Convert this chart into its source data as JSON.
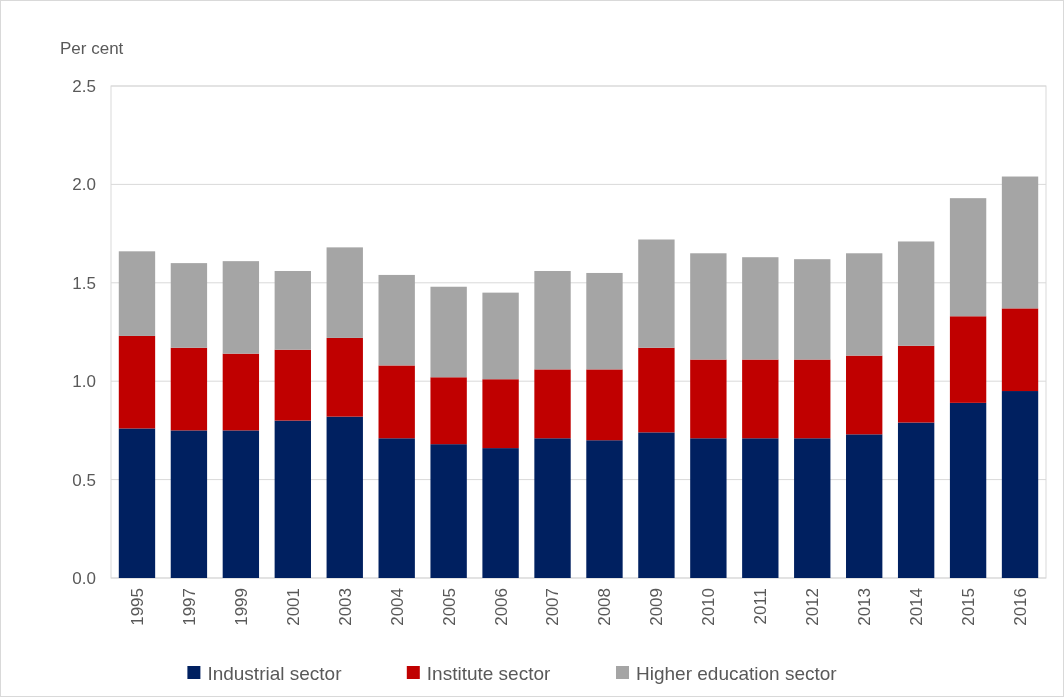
{
  "chart_data": {
    "type": "bar",
    "stacked": true,
    "ylabel": "Per cent",
    "categories": [
      "1995",
      "1997",
      "1999",
      "2001",
      "2003",
      "2004",
      "2005",
      "2006",
      "2007",
      "2008",
      "2009",
      "2010",
      "2011",
      "2012",
      "2013",
      "2014",
      "2015",
      "2016"
    ],
    "series": [
      {
        "name": "Industrial sector",
        "color": "#002060",
        "values": [
          0.76,
          0.75,
          0.75,
          0.8,
          0.82,
          0.71,
          0.68,
          0.66,
          0.71,
          0.7,
          0.74,
          0.71,
          0.71,
          0.71,
          0.73,
          0.79,
          0.89,
          0.95
        ]
      },
      {
        "name": "Institute sector",
        "color": "#c00000",
        "values": [
          0.47,
          0.42,
          0.39,
          0.36,
          0.4,
          0.37,
          0.34,
          0.35,
          0.35,
          0.36,
          0.43,
          0.4,
          0.4,
          0.4,
          0.4,
          0.39,
          0.44,
          0.42
        ]
      },
      {
        "name": "Higher education sector",
        "color": "#a5a5a5",
        "values": [
          0.43,
          0.43,
          0.47,
          0.4,
          0.46,
          0.46,
          0.46,
          0.44,
          0.5,
          0.49,
          0.55,
          0.54,
          0.52,
          0.51,
          0.52,
          0.53,
          0.6,
          0.67
        ]
      }
    ],
    "ylim": [
      0,
      2.5
    ],
    "yticks": [
      {
        "value": 0,
        "label": "0.0"
      },
      {
        "value": 0.5,
        "label": "0.5"
      },
      {
        "value": 1,
        "label": "1.0"
      },
      {
        "value": 1.5,
        "label": "1.5"
      },
      {
        "value": 2,
        "label": "2.0"
      },
      {
        "value": 2.5,
        "label": "2.5"
      }
    ],
    "grid": "y",
    "legend": "bottom"
  }
}
